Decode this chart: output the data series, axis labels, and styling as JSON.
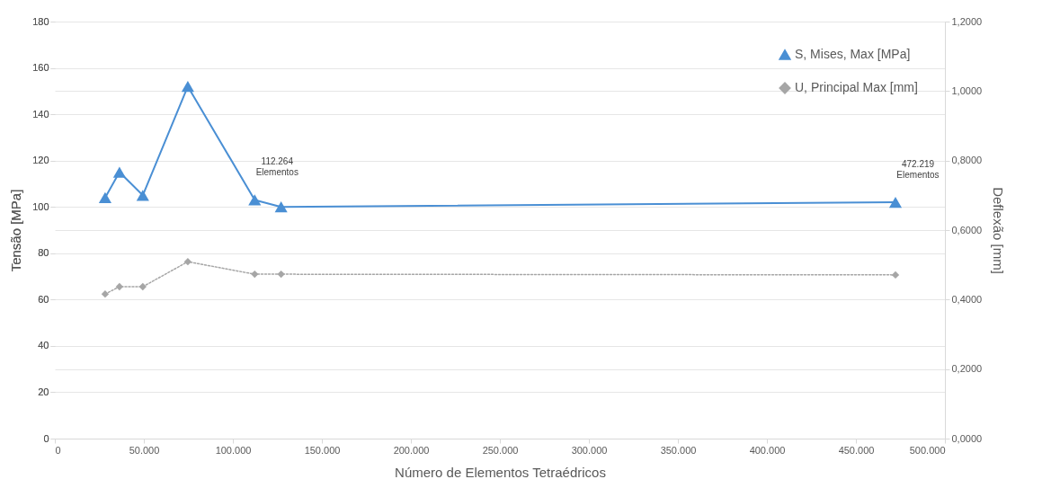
{
  "chart_data": {
    "type": "line",
    "xlabel": "Número de Elementos Tetraédricos",
    "ylabel": "Tensão [MPa]",
    "y2label": "Deflexão [mm]",
    "x": [
      28250,
      36300,
      49400,
      74700,
      112264,
      127100,
      472219
    ],
    "series": [
      {
        "name": "S, Mises, Max [MPa]",
        "color": "#4a8fd4",
        "values": [
          104,
          115,
          105,
          152,
          103,
          100,
          102
        ],
        "marker": "triangle",
        "line_style": "solid"
      },
      {
        "name": "U, Principal Max [mm]",
        "color": "#a6a6a6",
        "values": [
          0.416,
          0.437,
          0.437,
          0.509,
          0.473,
          0.473,
          0.471
        ],
        "marker": "diamond",
        "line_style": "dotted",
        "axis": "y2"
      }
    ],
    "xlim": [
      0,
      500000
    ],
    "xticks": [
      0,
      {
        "value": 50000,
        "label": "50.000"
      },
      {
        "value": 100000,
        "label": "100.000"
      },
      {
        "value": 150000,
        "label": "150.000"
      },
      {
        "value": 200000,
        "label": "200.000"
      },
      {
        "value": 250000,
        "label": "250.000"
      },
      {
        "value": 300000,
        "label": "300.000"
      },
      {
        "value": 350000,
        "label": "350.000"
      },
      {
        "value": 400000,
        "label": "400.000"
      },
      {
        "value": 450000,
        "label": "450.000"
      },
      {
        "value": 500000,
        "label": "500.000"
      }
    ],
    "ylim": [
      0,
      180
    ],
    "yticks": [
      0,
      20,
      40,
      60,
      80,
      100,
      120,
      140,
      160,
      180
    ],
    "y2lim": [
      0,
      1.2
    ],
    "y2ticks": [
      {
        "value": 0,
        "label": "0,0000"
      },
      {
        "value": 0.2,
        "label": "0,2000"
      },
      {
        "value": 0.4,
        "label": "0,4000"
      },
      {
        "value": 0.6,
        "label": "0,6000"
      },
      {
        "value": 0.8,
        "label": "0,8000"
      },
      {
        "value": 1.0,
        "label": "1,0000"
      },
      {
        "value": 1.2,
        "label": "1,2000"
      }
    ],
    "annotations": [
      {
        "text": "112.264 Elementos",
        "x": 112264,
        "y": 103
      },
      {
        "text": "472.219 Elementos",
        "x": 472219,
        "y": 102
      }
    ],
    "grid": "y",
    "legend": "top right"
  }
}
